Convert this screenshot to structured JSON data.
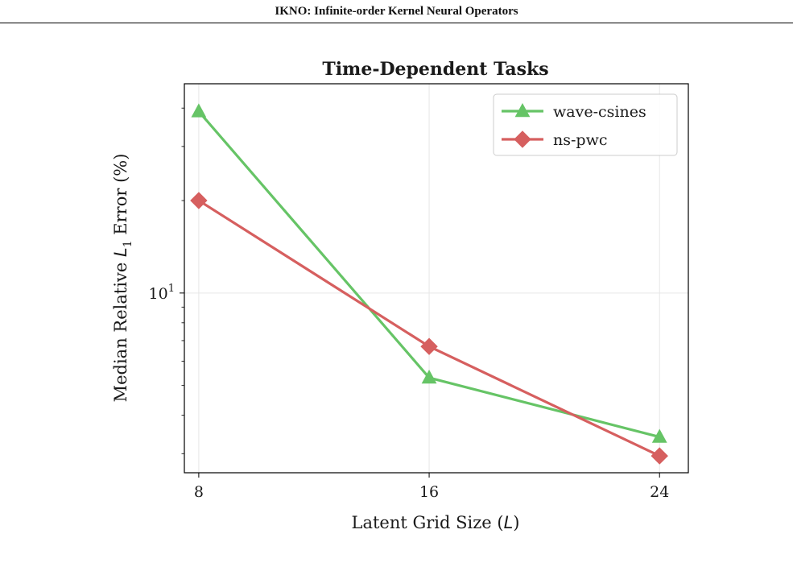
{
  "page": {
    "header": "IKNO: Infinite-order Kernel Neural Operators",
    "caption_fragment": ""
  },
  "chart_data": {
    "type": "line",
    "title": "Time-Dependent Tasks",
    "xlabel": "Latent Grid Size (L)",
    "ylabel": "Median Relative L1 Error (%)",
    "x": [
      8,
      16,
      24
    ],
    "x_ticks": [
      "8",
      "16",
      "24"
    ],
    "xlim": [
      7.5,
      25
    ],
    "y_scale": "log",
    "ylim": [
      2.6,
      48
    ],
    "y_major_tick": {
      "value": 10,
      "label": "10",
      "exponent": "1"
    },
    "grid": true,
    "legend_position": "top-right",
    "series": [
      {
        "name": "wave-csines",
        "values": [
          39,
          5.3,
          3.4
        ],
        "color": "#66c466",
        "marker": "triangle"
      },
      {
        "name": "ns-pwc",
        "values": [
          20,
          6.7,
          2.95
        ],
        "color": "#d65f5f",
        "marker": "diamond"
      }
    ]
  }
}
